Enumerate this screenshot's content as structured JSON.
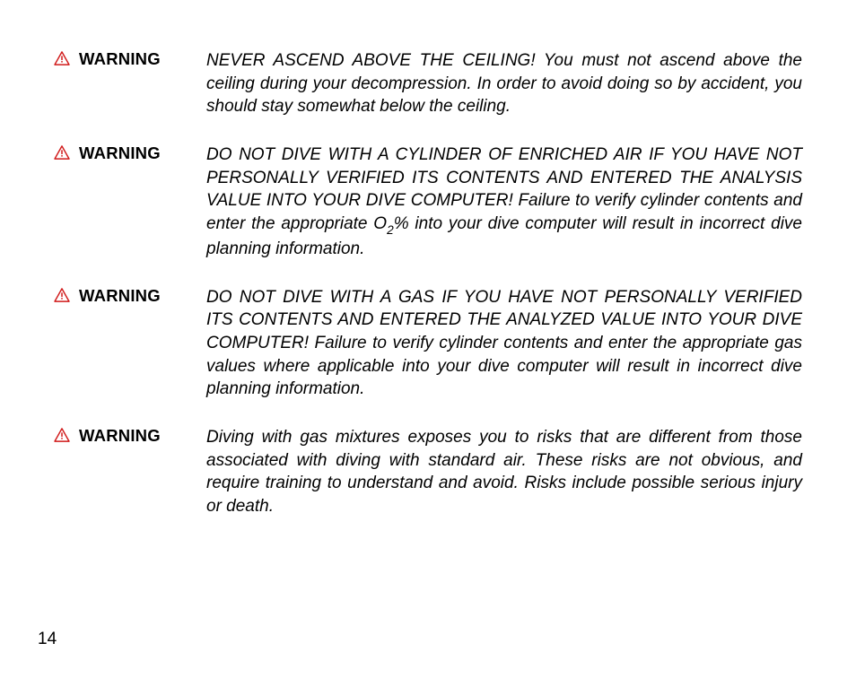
{
  "page": {
    "number": "14"
  },
  "warningLabel": "WARNING",
  "iconColor": "#d11a1a",
  "warnings": [
    {
      "body_html": "NEVER ASCEND ABOVE THE CEILING! You must not ascend above the ceiling during your decompression. In order to avoid doing so by accident, you should stay somewhat below the ceiling."
    },
    {
      "body_html": "DO NOT DIVE WITH A CYLINDER OF ENRICHED AIR IF YOU HAVE NOT PERSONALLY VERIFIED ITS CONTENTS AND ENTERED THE ANALYSIS VALUE INTO YOUR DIVE COMPUTER! Failure to verify cylinder contents and enter the appropriate O<span class=\"sub2\">2</span>% into your dive computer will result in incorrect dive planning information."
    },
    {
      "body_html": "DO NOT DIVE WITH A GAS IF YOU HAVE NOT PERSONALLY VERIFIED ITS CONTENTS AND ENTERED THE ANALYZED VALUE INTO YOUR DIVE COMPUTER! Failure to verify cylinder contents and enter the appropriate gas values where applicable into your dive computer will result in incorrect dive planning information."
    },
    {
      "body_html": "Diving with gas mixtures exposes you to risks that are different from those associated with diving with standard air. These risks are not obvious, and require training to understand and avoid. Risks include possible serious injury or death."
    }
  ]
}
